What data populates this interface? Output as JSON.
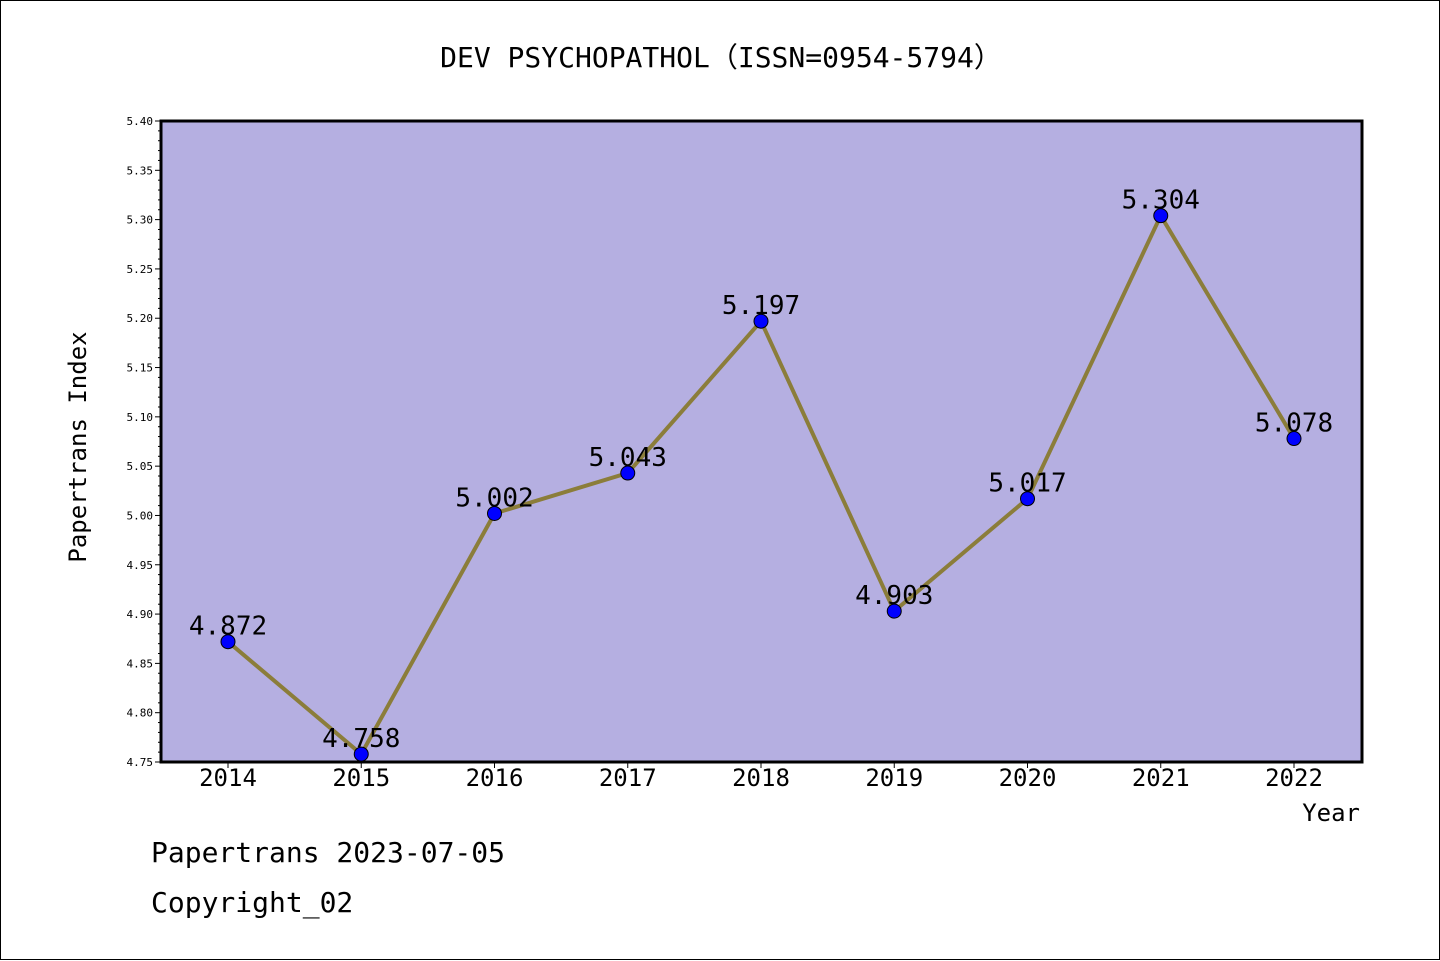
{
  "chart_data": {
    "type": "line",
    "title": "DEV PSYCHOPATHOL（ISSN=0954-5794）",
    "xlabel": "Year",
    "ylabel": "Papertrans Index",
    "categories": [
      "2014",
      "2015",
      "2016",
      "2017",
      "2018",
      "2019",
      "2020",
      "2021",
      "2022"
    ],
    "series": [
      {
        "values": [
          4.872,
          4.758,
          5.002,
          5.043,
          5.197,
          4.903,
          5.017,
          5.304,
          5.078
        ]
      }
    ],
    "data_labels": [
      "4.872",
      "4.758",
      "5.002",
      "5.043",
      "5.197",
      "4.903",
      "5.017",
      "5.304",
      "5.078"
    ],
    "ylim": [
      4.75,
      5.4
    ],
    "y_ticks": [
      "4.75",
      "4.80",
      "4.85",
      "4.90",
      "4.95",
      "5.00",
      "5.05",
      "5.10",
      "5.15",
      "5.20",
      "5.25",
      "5.30",
      "5.35",
      "5.40"
    ],
    "grid": false,
    "legend": "none",
    "colors": {
      "plot_background": "#b5afe1",
      "line": "#8b7d3a",
      "marker": "#0000ff",
      "marker_edge": "#000000",
      "axes": "#000000"
    }
  },
  "footer": {
    "line1": "Papertrans 2023-07-05",
    "line2": "Copyright_02"
  }
}
